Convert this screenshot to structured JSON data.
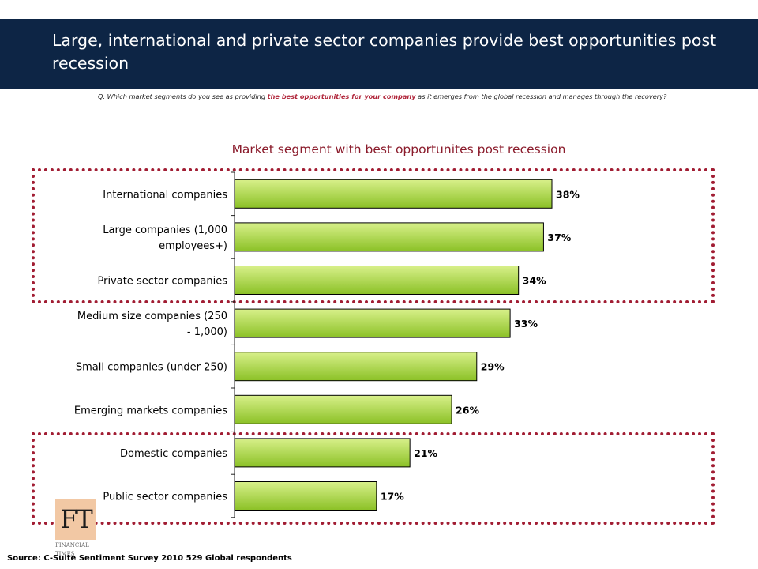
{
  "header": {
    "title": "Large, international and private sector companies provide best opportunities post recession"
  },
  "question": {
    "prefix": "Q. Which market segments do you see as providing ",
    "highlight": "the best opportunities for your company",
    "suffix": " as it emerges from the global recession and manages through the recovery?"
  },
  "logo": {
    "mark": "FT",
    "line1": "FINANCIAL",
    "line2": "TIMES"
  },
  "source": "Source: C-Suite Sentiment Survey 2010 529 Global respondents",
  "colors": {
    "header_bg": "#0d2545",
    "bar_fill_top": "#d8f08a",
    "bar_fill_bottom": "#8bc126",
    "highlight_box": "#a11d33",
    "chart_title": "#8b1c2c"
  },
  "chart_data": {
    "type": "bar",
    "orientation": "horizontal",
    "title": "Market segment with best opportunites post recession",
    "categories": [
      "International companies",
      "Large companies (1,000 employees+)",
      "Private sector companies",
      "Medium size companies (250 - 1,000)",
      "Small companies (under 250)",
      "Emerging markets companies",
      "Domestic companies",
      "Public sector companies"
    ],
    "category_lines": [
      [
        "International companies"
      ],
      [
        "Large companies (1,000",
        "employees+)"
      ],
      [
        "Private sector companies"
      ],
      [
        "Medium size companies (250",
        "- 1,000)"
      ],
      [
        "Small companies (under 250)"
      ],
      [
        "Emerging markets companies"
      ],
      [
        "Domestic companies"
      ],
      [
        "Public sector companies"
      ]
    ],
    "values": [
      38,
      37,
      34,
      33,
      29,
      26,
      21,
      17
    ],
    "value_labels": [
      "38%",
      "37%",
      "34%",
      "33%",
      "29%",
      "26%",
      "21%",
      "17%"
    ],
    "xlim": [
      0,
      60
    ],
    "grid": false,
    "highlight_groups": [
      [
        0,
        2
      ],
      [
        6,
        7
      ]
    ]
  }
}
